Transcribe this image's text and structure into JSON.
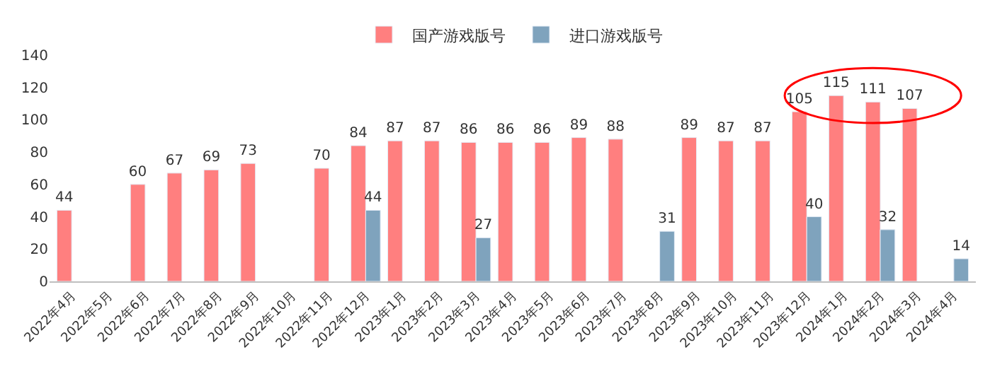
{
  "chart_data": {
    "type": "bar",
    "categories": [
      "2022年4月",
      "2022年5月",
      "2022年6月",
      "2022年7月",
      "2022年8月",
      "2022年9月",
      "2022年10月",
      "2022年11月",
      "2022年12月",
      "2023年1月",
      "2023年2月",
      "2023年3月",
      "2023年4月",
      "2023年5月",
      "2023年6月",
      "2023年7月",
      "2023年8月",
      "2023年9月",
      "2023年10月",
      "2023年11月",
      "2023年12月",
      "2024年1月",
      "2024年2月",
      "2024年3月",
      "2024年4月"
    ],
    "series": [
      {
        "name": "国产游戏版号",
        "color": "#ff7f7f",
        "values": [
          44,
          null,
          60,
          67,
          69,
          73,
          null,
          70,
          84,
          87,
          87,
          86,
          86,
          86,
          89,
          88,
          null,
          89,
          87,
          87,
          105,
          115,
          111,
          107,
          null
        ]
      },
      {
        "name": "进口游戏版号",
        "color": "#7fa3bd",
        "values": [
          null,
          null,
          null,
          null,
          null,
          null,
          null,
          null,
          44,
          null,
          null,
          27,
          null,
          null,
          null,
          null,
          31,
          null,
          null,
          null,
          40,
          null,
          32,
          null,
          14
        ]
      }
    ],
    "ylim": [
      0,
      140
    ],
    "yticks": [
      0,
      20,
      40,
      60,
      80,
      100,
      120,
      140
    ],
    "legend": "top",
    "data_labels": true
  }
}
